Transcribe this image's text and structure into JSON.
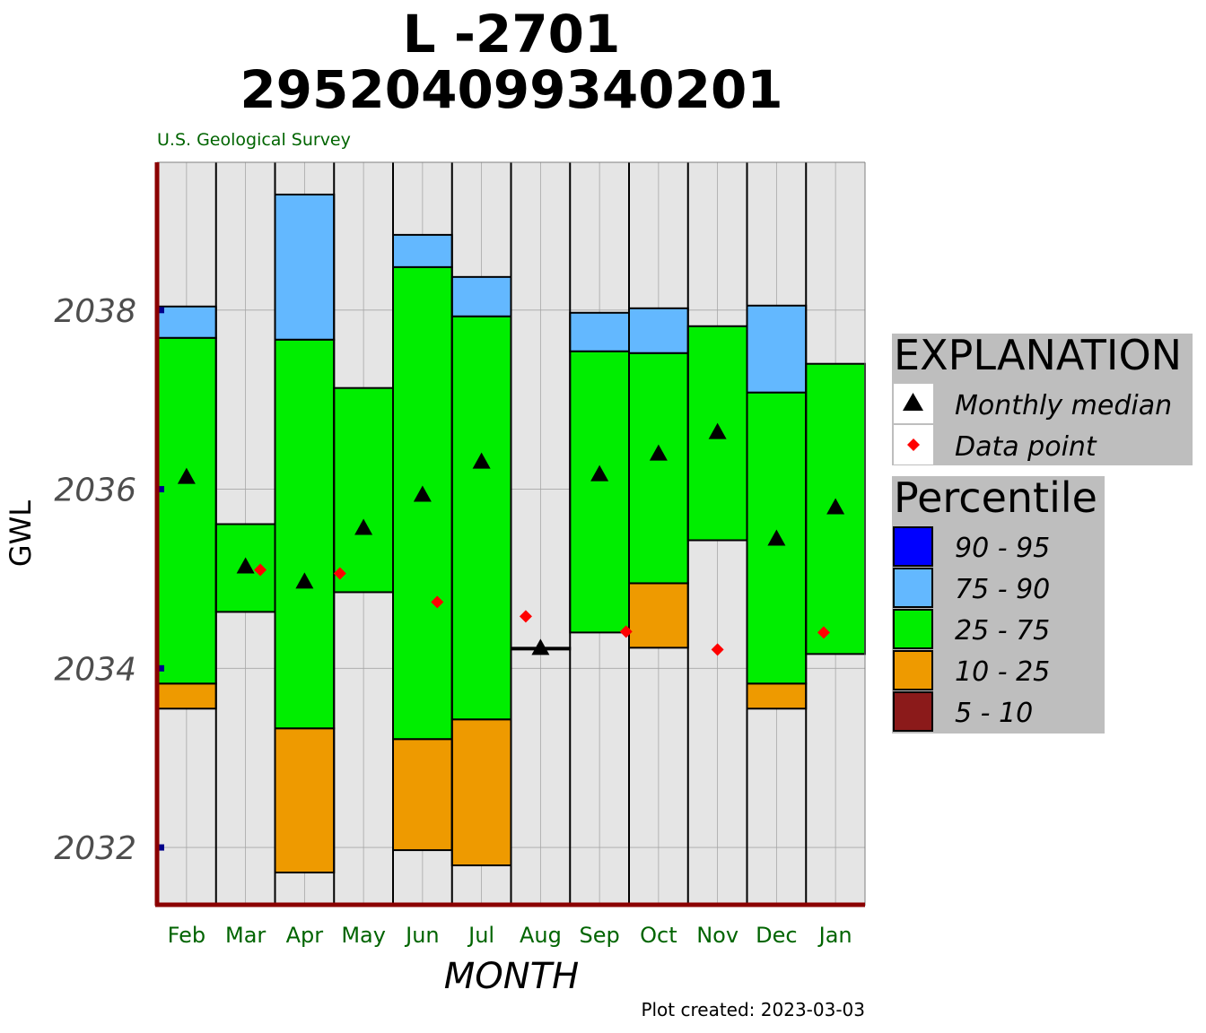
{
  "chart_data": {
    "type": "bar",
    "title_line1": "L -2701",
    "title_line2": "295204099340201",
    "subtitle": "U.S. Geological Survey",
    "xlabel": "MONTH",
    "ylabel": "GWL",
    "footer": "Plot created: 2023-03-03",
    "ylim": [
      2031.35,
      2039.65
    ],
    "yticks": [
      2032,
      2034,
      2036,
      2038
    ],
    "categories": [
      "Feb",
      "Mar",
      "Apr",
      "May",
      "Jun",
      "Jul",
      "Aug",
      "Sep",
      "Oct",
      "Nov",
      "Dec",
      "Jan"
    ],
    "percentile_bands": [
      {
        "month": "Feb",
        "p10": 2033.55,
        "p25": 2033.83,
        "p75": 2037.69,
        "p90": 2038.04
      },
      {
        "month": "Mar",
        "p10": null,
        "p25": 2034.63,
        "p75": 2035.61,
        "p90": null
      },
      {
        "month": "Apr",
        "p10": 2031.72,
        "p25": 2033.33,
        "p75": 2037.67,
        "p90": 2039.29
      },
      {
        "month": "May",
        "p10": null,
        "p25": 2034.85,
        "p75": 2037.13,
        "p90": null
      },
      {
        "month": "Jun",
        "p10": 2031.97,
        "p25": 2033.21,
        "p75": 2038.48,
        "p90": 2038.84
      },
      {
        "month": "Jul",
        "p10": 2031.8,
        "p25": 2033.43,
        "p75": 2037.93,
        "p90": 2038.37
      },
      {
        "month": "Aug",
        "p10": null,
        "p25": 2034.21,
        "p75": 2034.23,
        "p90": null
      },
      {
        "month": "Sep",
        "p10": null,
        "p25": 2034.4,
        "p75": 2037.54,
        "p90": 2037.97
      },
      {
        "month": "Oct",
        "p10": 2034.23,
        "p25": 2034.95,
        "p75": 2037.52,
        "p90": 2038.02
      },
      {
        "month": "Nov",
        "p10": null,
        "p25": 2035.43,
        "p75": 2037.82,
        "p90": null
      },
      {
        "month": "Dec",
        "p10": 2033.55,
        "p25": 2033.83,
        "p75": 2037.08,
        "p90": 2038.05
      },
      {
        "month": "Jan",
        "p10": null,
        "p25": 2034.16,
        "p75": 2037.4,
        "p90": null
      }
    ],
    "monthly_median": [
      2036.14,
      2035.14,
      2034.97,
      2035.57,
      2035.94,
      2036.31,
      2034.23,
      2036.17,
      2036.4,
      2036.64,
      2035.45,
      2035.8
    ],
    "data_points": [
      {
        "month": "Mar",
        "offset": 0.25,
        "value": 2035.1
      },
      {
        "month": "May",
        "offset": -0.4,
        "value": 2035.06
      },
      {
        "month": "Jun",
        "offset": 0.25,
        "value": 2034.74
      },
      {
        "month": "Aug",
        "offset": -0.25,
        "value": 2034.58
      },
      {
        "month": "Sep",
        "offset": 0.45,
        "value": 2034.41
      },
      {
        "month": "Nov",
        "offset": 0.0,
        "value": 2034.21
      },
      {
        "month": "Jan",
        "offset": -0.2,
        "value": 2034.4
      }
    ],
    "axis_markers": [
      2032,
      2034,
      2036,
      2038
    ],
    "colors": {
      "p90_95": "#0000ff",
      "p75_90": "#63b8ff",
      "p25_75": "#00ee00",
      "p10_25": "#ee9a00",
      "p5_10": "#8b1a1a",
      "panel": "#e5e5e5",
      "axis": "#8b0000",
      "median": "#000000",
      "data_point": "#ff0000",
      "axis_marker": "#00008b"
    },
    "legend": {
      "placement": "right",
      "explanation_title": "EXPLANATION",
      "median_label": "Monthly median",
      "data_point_label": "Data point",
      "percentile_title": "Percentile",
      "percentile_items": [
        {
          "label": "90 - 95",
          "color": "#0000ff"
        },
        {
          "label": "75 - 90",
          "color": "#63b8ff"
        },
        {
          "label": "25 - 75",
          "color": "#00ee00"
        },
        {
          "label": "10 - 25",
          "color": "#ee9a00"
        },
        {
          "label": "5 - 10",
          "color": "#8b1a1a"
        }
      ]
    }
  }
}
